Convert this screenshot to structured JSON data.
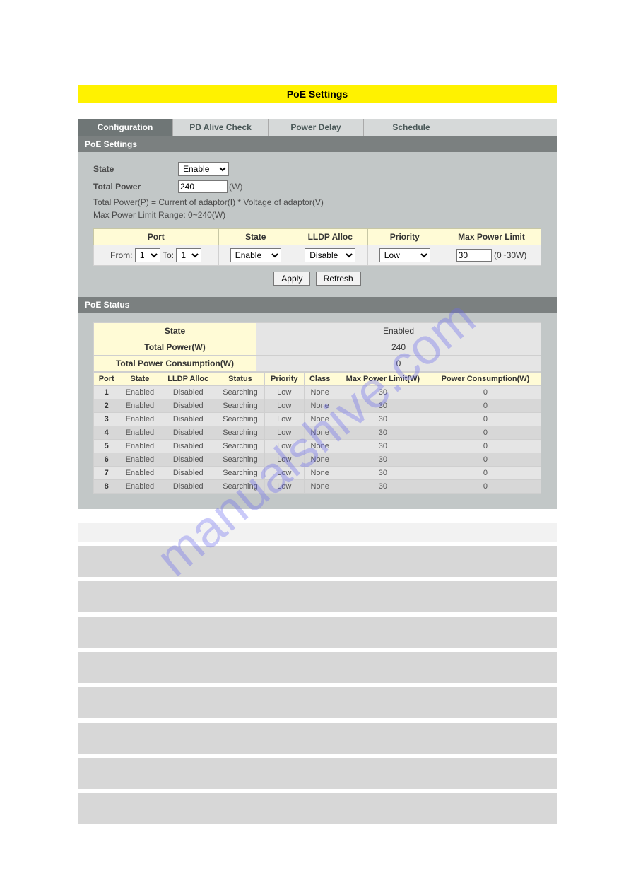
{
  "banner": {
    "title": "PoE Settings"
  },
  "tabs": {
    "configuration": "Configuration",
    "pd_alive": "PD Alive Check",
    "power_delay": "Power Delay",
    "schedule": "Schedule",
    "active": "configuration"
  },
  "section": {
    "settings_title": "PoE Settings",
    "status_title": "PoE Status"
  },
  "form": {
    "state_label": "State",
    "state_value": "Enable",
    "total_power_label": "Total Power",
    "total_power_value": "240",
    "total_power_unit": "(W)",
    "help1": "Total Power(P) = Current of adaptor(I) * Voltage of adaptor(V)",
    "help2": "Max Power Limit Range: 0~240(W)"
  },
  "cfg_headers": {
    "port": "Port",
    "state": "State",
    "lldp": "LLDP Alloc",
    "priority": "Priority",
    "maxpower": "Max Power Limit"
  },
  "cfg_row": {
    "from_label": "From:",
    "from_value": "1",
    "to_label": "To:",
    "to_value": "1",
    "state": "Enable",
    "lldp": "Disable",
    "priority": "Low",
    "maxpower": "30",
    "maxpower_unit": "(0~30W)"
  },
  "buttons": {
    "apply": "Apply",
    "refresh": "Refresh"
  },
  "status_summary": {
    "state_label": "State",
    "state_value": "Enabled",
    "total_power_label": "Total Power(W)",
    "total_power_value": "240",
    "consumption_label": "Total Power Consumption(W)",
    "consumption_value": "0"
  },
  "status_headers": {
    "port": "Port",
    "state": "State",
    "lldp": "LLDP Alloc",
    "status": "Status",
    "priority": "Priority",
    "class": "Class",
    "maxpower": "Max Power Limit(W)",
    "consumption": "Power Consumption(W)"
  },
  "status_rows": [
    {
      "port": "1",
      "state": "Enabled",
      "lldp": "Disabled",
      "status": "Searching",
      "priority": "Low",
      "class": "None",
      "maxpower": "30",
      "consumption": "0"
    },
    {
      "port": "2",
      "state": "Enabled",
      "lldp": "Disabled",
      "status": "Searching",
      "priority": "Low",
      "class": "None",
      "maxpower": "30",
      "consumption": "0"
    },
    {
      "port": "3",
      "state": "Enabled",
      "lldp": "Disabled",
      "status": "Searching",
      "priority": "Low",
      "class": "None",
      "maxpower": "30",
      "consumption": "0"
    },
    {
      "port": "4",
      "state": "Enabled",
      "lldp": "Disabled",
      "status": "Searching",
      "priority": "Low",
      "class": "None",
      "maxpower": "30",
      "consumption": "0"
    },
    {
      "port": "5",
      "state": "Enabled",
      "lldp": "Disabled",
      "status": "Searching",
      "priority": "Low",
      "class": "None",
      "maxpower": "30",
      "consumption": "0"
    },
    {
      "port": "6",
      "state": "Enabled",
      "lldp": "Disabled",
      "status": "Searching",
      "priority": "Low",
      "class": "None",
      "maxpower": "30",
      "consumption": "0"
    },
    {
      "port": "7",
      "state": "Enabled",
      "lldp": "Disabled",
      "status": "Searching",
      "priority": "Low",
      "class": "None",
      "maxpower": "30",
      "consumption": "0"
    },
    {
      "port": "8",
      "state": "Enabled",
      "lldp": "Disabled",
      "status": "Searching",
      "priority": "Low",
      "class": "None",
      "maxpower": "30",
      "consumption": "0"
    }
  ],
  "watermark": "manualshive.com",
  "styling": {
    "banner_bg": "#fff200",
    "panel_bg": "#c2c7c7",
    "tab_active_bg": "#6f7676",
    "tab_inactive_bg": "#d6d9d9",
    "header_bg": "#7b8080",
    "cell_header_bg": "#fffbd6",
    "row_odd_bg": "#e5e5e5",
    "row_even_bg": "#d7d7d7",
    "blank_header_bg": "#f2f2f2",
    "blank_row_bg": "#d7d7d7"
  },
  "blank_rows": {
    "count": 8
  }
}
